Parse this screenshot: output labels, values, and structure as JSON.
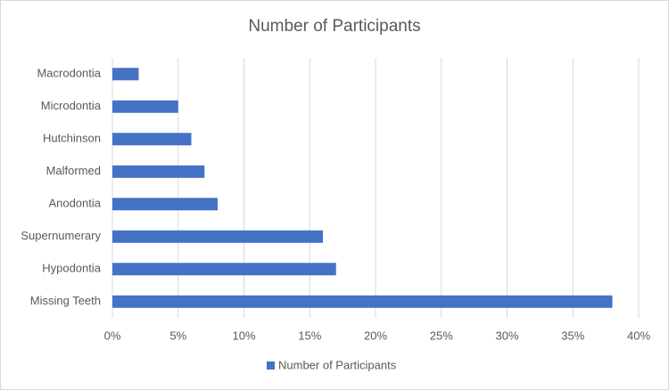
{
  "chart_data": {
    "type": "bar",
    "orientation": "horizontal",
    "title": "Number of Participants",
    "categories": [
      "Macrodontia",
      "Microdontia",
      "Hutchinson",
      "Malformed",
      "Anodontia",
      "Supernumerary",
      "Hypodontia",
      "Missing Teeth"
    ],
    "series": [
      {
        "name": "Number of Participants",
        "color": "#4472c4",
        "values": [
          2,
          5,
          6,
          7,
          8,
          16,
          17,
          38
        ]
      }
    ],
    "xlim": [
      0,
      40
    ],
    "xticks": [
      {
        "value": 0,
        "label": "0%"
      },
      {
        "value": 5,
        "label": "5%"
      },
      {
        "value": 10,
        "label": "10%"
      },
      {
        "value": 15,
        "label": "15%"
      },
      {
        "value": 20,
        "label": "20%"
      },
      {
        "value": 25,
        "label": "25%"
      },
      {
        "value": 30,
        "label": "30%"
      },
      {
        "value": 35,
        "label": "35%"
      },
      {
        "value": 40,
        "label": "40%"
      }
    ],
    "grid": true,
    "legend": "bottom"
  }
}
